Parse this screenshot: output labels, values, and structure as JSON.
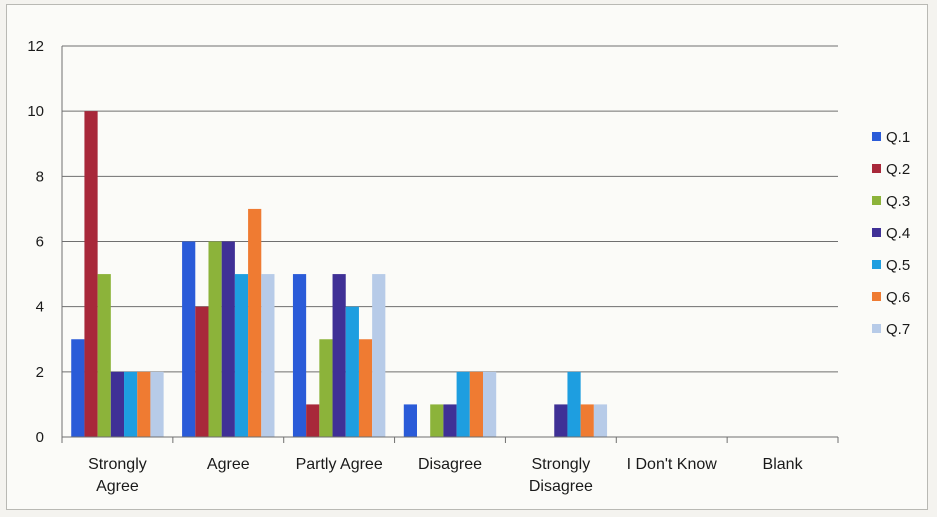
{
  "chart_data": {
    "type": "bar",
    "title": "",
    "xlabel": "",
    "ylabel": "",
    "ylim": [
      0,
      12
    ],
    "yticks": [
      "0",
      "2",
      "4",
      "6",
      "8",
      "10",
      "12"
    ],
    "grid": true,
    "legend_position": "right",
    "categories": [
      [
        "Strongly",
        "Agree"
      ],
      [
        "Agree"
      ],
      [
        "Partly Agree"
      ],
      [
        "Disagree"
      ],
      [
        "Strongly",
        "Disagree"
      ],
      [
        "I Don't Know"
      ],
      [
        "Blank"
      ]
    ],
    "series": [
      {
        "name": "Q.1",
        "color": "#2a5bd8",
        "values": [
          3,
          6,
          5,
          1,
          0,
          0,
          0
        ]
      },
      {
        "name": "Q.2",
        "color": "#a8283a",
        "values": [
          10,
          4,
          1,
          0,
          0,
          0,
          0
        ]
      },
      {
        "name": "Q.3",
        "color": "#8cb33a",
        "values": [
          5,
          6,
          3,
          1,
          0,
          0,
          0
        ]
      },
      {
        "name": "Q.4",
        "color": "#3f3096",
        "values": [
          2,
          6,
          5,
          1,
          1,
          0,
          0
        ]
      },
      {
        "name": "Q.5",
        "color": "#1e9ee0",
        "values": [
          2,
          5,
          4,
          2,
          2,
          0,
          0
        ]
      },
      {
        "name": "Q.6",
        "color": "#ef7b32",
        "values": [
          2,
          7,
          3,
          2,
          1,
          0,
          0
        ]
      },
      {
        "name": "Q.7",
        "color": "#b7cbe8",
        "values": [
          2,
          5,
          5,
          2,
          1,
          0,
          0
        ]
      }
    ]
  }
}
